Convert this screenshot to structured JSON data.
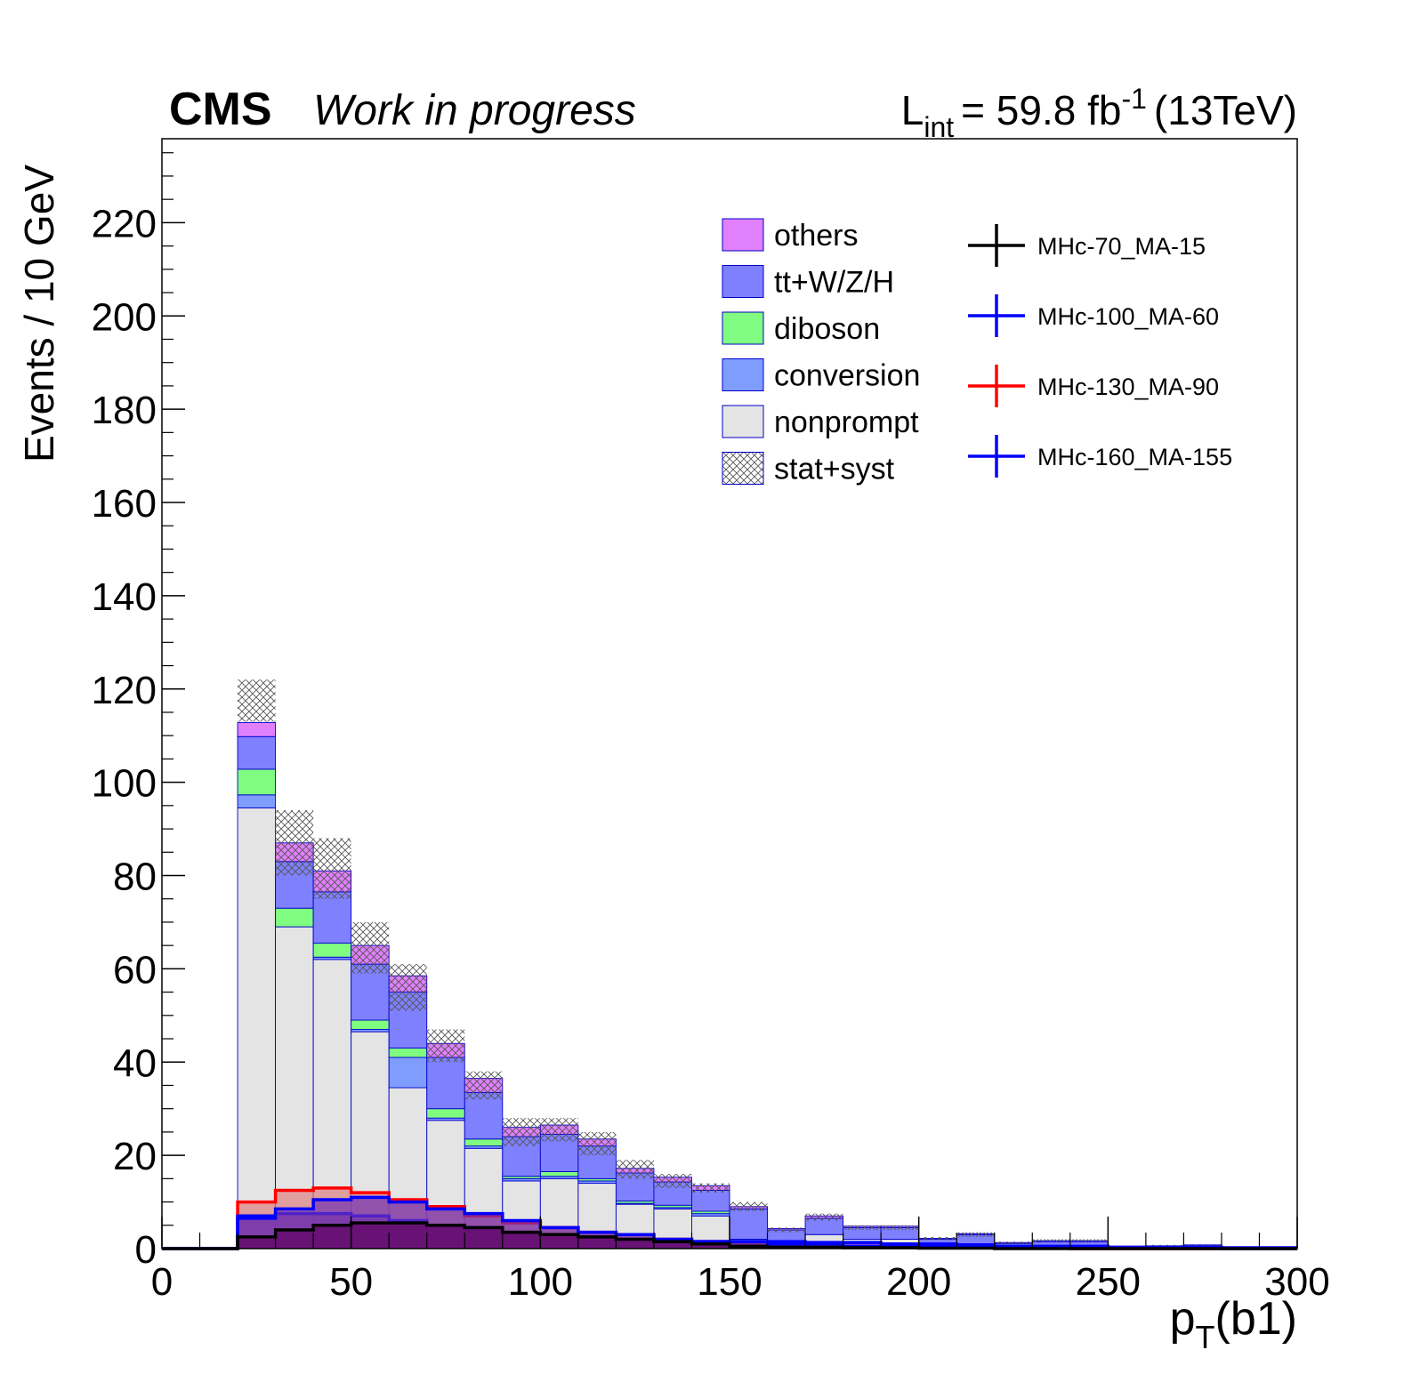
{
  "header": {
    "experiment": "CMS",
    "status": "Work in progress",
    "lumi_symbol": "L",
    "lumi_subscript": "int",
    "lumi_text": "= 59.8 fb",
    "lumi_exponent": "-1",
    "energy": "(13TeV)"
  },
  "chart_data": {
    "type": "bar",
    "stacked": true,
    "xlabel_main": "p",
    "xlabel_sub": "T",
    "xlabel_rest": "(b1)",
    "ylabel": "Events / 10 GeV",
    "xlim": [
      0,
      300
    ],
    "ylim": [
      0,
      238
    ],
    "x_ticks": [
      "0",
      "50",
      "100",
      "150",
      "200",
      "250",
      "300"
    ],
    "y_ticks": [
      "0",
      "20",
      "40",
      "60",
      "80",
      "100",
      "120",
      "140",
      "160",
      "180",
      "200",
      "220"
    ],
    "bin_edges": [
      0,
      10,
      20,
      30,
      40,
      50,
      60,
      70,
      80,
      90,
      100,
      110,
      120,
      130,
      140,
      150,
      160,
      170,
      180,
      190,
      200,
      210,
      220,
      230,
      240,
      250,
      260,
      270,
      280,
      290,
      300
    ],
    "series": [
      {
        "name": "nonprompt",
        "color": "#e4e4e4",
        "values": [
          0,
          0,
          94.5,
          69,
          62,
          46.5,
          34.5,
          27.5,
          21.5,
          14.5,
          15,
          14,
          9.5,
          8.5,
          7,
          1,
          0.5,
          3,
          2,
          2,
          0.5,
          0.5,
          0.3,
          0.3,
          0.5,
          0,
          0,
          0.2,
          0,
          0
        ]
      },
      {
        "name": "conversion",
        "color": "#7f9dff",
        "values": [
          0,
          0,
          2.8,
          0,
          0.5,
          0.5,
          6.5,
          0.5,
          0.5,
          0.5,
          0.5,
          0.5,
          0.2,
          0.3,
          0.5,
          1,
          0,
          0,
          0,
          0,
          0,
          0,
          0,
          0,
          0,
          0,
          0,
          0,
          0,
          0
        ]
      },
      {
        "name": "diboson",
        "color": "#80fc80",
        "values": [
          0,
          0,
          5.5,
          4,
          3,
          2,
          2,
          2,
          1.5,
          0.5,
          1,
          0.5,
          0.5,
          0.5,
          0.5,
          0,
          0,
          0,
          0,
          0,
          0,
          0,
          0,
          0,
          0,
          0,
          0,
          0,
          0,
          0
        ]
      },
      {
        "name": "tt+W/Z/H",
        "color": "#7f80fd",
        "values": [
          0,
          0,
          7,
          10,
          11,
          12,
          12,
          11,
          10,
          8.5,
          8,
          7,
          6,
          5,
          4.5,
          6.5,
          3.5,
          3.5,
          2.5,
          2.5,
          1.5,
          2.5,
          0.8,
          1.2,
          1,
          0.3,
          0.4,
          0.4,
          0,
          0
        ]
      },
      {
        "name": "others",
        "color": "#e180fc",
        "values": [
          0,
          0,
          3,
          4,
          4.5,
          4,
          3.5,
          3,
          3,
          2,
          2,
          1.5,
          1,
          1,
          1,
          0.5,
          0.3,
          0.5,
          0.3,
          0.3,
          0.2,
          0.2,
          0.2,
          0.2,
          0.2,
          0.2,
          0.2,
          0.2,
          0,
          0
        ]
      }
    ],
    "uncertainty": {
      "name": "stat+syst",
      "up": [
        0,
        0,
        122,
        94,
        88,
        70,
        61,
        47,
        38,
        28,
        28,
        25,
        19,
        16,
        14,
        10,
        4.5,
        7.5,
        5,
        5,
        2.5,
        3.5,
        1.5,
        2,
        2,
        0.5,
        0.8,
        0.8,
        0.2,
        0.2
      ],
      "down": [
        0,
        0,
        113,
        80,
        75,
        59,
        51,
        40,
        32,
        22,
        23,
        20,
        15,
        13,
        12,
        8,
        3.5,
        6,
        4,
        4,
        1.8,
        2.5,
        1,
        1.5,
        1.5,
        0.3,
        0.5,
        0.5,
        0,
        0
      ]
    },
    "signals": [
      {
        "name": "MHc-70_MA-15",
        "color": "#000000",
        "fill": "#600060",
        "values": [
          0,
          0,
          2.5,
          4,
          5,
          5.5,
          5.5,
          5,
          4.5,
          3.5,
          3,
          2.5,
          2,
          1.5,
          1,
          0.5,
          0.3,
          0.3,
          0.2,
          0.2,
          0.1,
          0.1,
          0,
          0,
          0,
          0,
          0,
          0,
          0,
          0
        ]
      },
      {
        "name": "MHc-100_MA-60",
        "color": "#0000ff",
        "fill": "#7030b0",
        "values": [
          0,
          0,
          6.5,
          8.5,
          10.5,
          11,
          10,
          8.5,
          7.5,
          6,
          4.5,
          3.5,
          3,
          2,
          1.5,
          1.5,
          1,
          1,
          0.5,
          0.5,
          0.5,
          0.3,
          0.3,
          0.2,
          0.2,
          0.1,
          0.1,
          0.1,
          0,
          0
        ]
      },
      {
        "name": "MHc-130_MA-90",
        "color": "#ff0000",
        "fill": "#e08080",
        "values": [
          0,
          0,
          10,
          12.5,
          13,
          12,
          10.5,
          9,
          7,
          5.5,
          4.5,
          3.5,
          3,
          2,
          1.5,
          1,
          0.5,
          0.5,
          0.3,
          0.3,
          0.2,
          0.2,
          0.1,
          0.1,
          0,
          0,
          0,
          0,
          0,
          0
        ]
      },
      {
        "name": "MHc-160_MA-155",
        "color": "#0000ff",
        "fill": "#8040a0",
        "values": [
          0,
          0,
          7,
          7.5,
          7.5,
          7,
          6,
          5,
          4.5,
          3.5,
          3,
          2.5,
          2,
          1.5,
          1.5,
          1.5,
          1.5,
          1.3,
          1.3,
          1,
          1,
          0.8,
          0.5,
          0.5,
          0.5,
          0.3,
          0.3,
          0.3,
          0.2,
          0.2
        ]
      }
    ],
    "legend": {
      "placement": "top-right",
      "background": [
        {
          "label": "others",
          "color": "#e180fc"
        },
        {
          "label": "tt+W/Z/H",
          "color": "#7f80fd"
        },
        {
          "label": "diboson",
          "color": "#80fc80"
        },
        {
          "label": "conversion",
          "color": "#7f9dff"
        },
        {
          "label": "nonprompt",
          "color": "#e4e4e4"
        },
        {
          "label": "stat+syst",
          "color": "hatch"
        }
      ],
      "signal": [
        {
          "label": "MHc-70_MA-15",
          "color": "#000000"
        },
        {
          "label": "MHc-100_MA-60",
          "color": "#0000ff"
        },
        {
          "label": "MHc-130_MA-90",
          "color": "#ff0000"
        },
        {
          "label": "MHc-160_MA-155",
          "color": "#0000ff"
        }
      ]
    },
    "grid": false
  }
}
